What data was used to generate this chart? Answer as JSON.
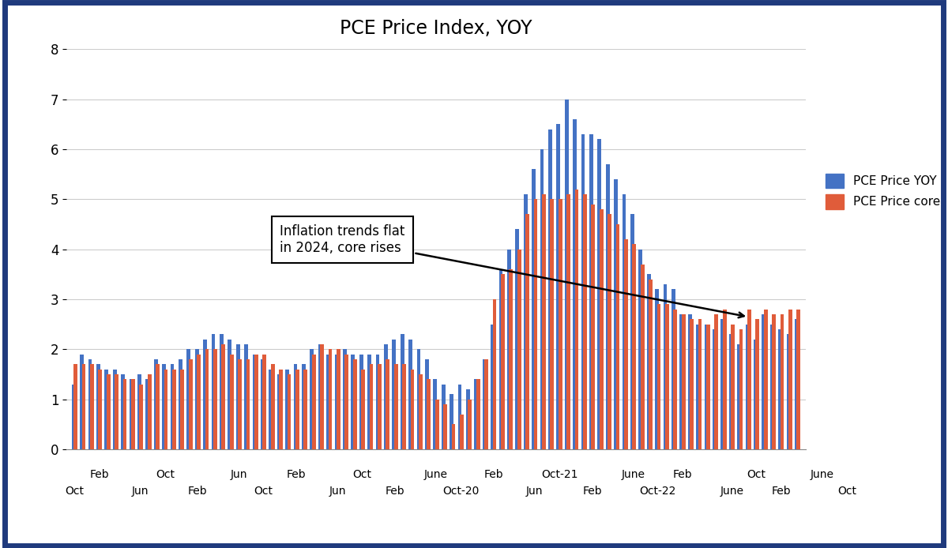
{
  "title": "PCE Price Index, YOY",
  "title_fontsize": 17,
  "bar_color_yoy": "#4472C4",
  "bar_color_core": "#E05C3A",
  "legend_yoy": "PCE Price YOY",
  "legend_core": "PCE Price core",
  "ylim": [
    0,
    8
  ],
  "yticks": [
    0,
    1,
    2,
    3,
    4,
    5,
    6,
    7,
    8
  ],
  "annotation_text": "Inflation trends flat\nin 2024, core rises",
  "background_color": "#FFFFFF",
  "border_color": "#1F3A7D",
  "pce_yoy": [
    1.3,
    1.9,
    1.8,
    1.7,
    1.6,
    1.6,
    1.5,
    1.4,
    1.5,
    1.4,
    1.8,
    1.7,
    1.7,
    1.8,
    2.0,
    2.0,
    2.2,
    2.3,
    2.3,
    2.2,
    2.1,
    2.1,
    1.9,
    1.8,
    1.6,
    1.5,
    1.6,
    1.7,
    1.7,
    2.0,
    2.1,
    1.9,
    1.9,
    2.0,
    1.9,
    1.9,
    1.9,
    1.9,
    2.1,
    2.2,
    2.3,
    2.2,
    2.0,
    1.8,
    1.4,
    1.3,
    1.1,
    1.3,
    1.2,
    1.4,
    1.8,
    2.5,
    3.6,
    4.0,
    4.4,
    5.1,
    5.6,
    6.0,
    6.4,
    6.5,
    7.0,
    6.6,
    6.3,
    6.3,
    6.2,
    5.7,
    5.4,
    5.1,
    4.7,
    4.0,
    3.5,
    3.2,
    3.3,
    3.2,
    2.7,
    2.7,
    2.5,
    2.5,
    2.4,
    2.6,
    2.3,
    2.1,
    2.5,
    2.2,
    2.7,
    2.5,
    2.4,
    2.3,
    2.6
  ],
  "pce_core": [
    1.7,
    1.7,
    1.7,
    1.6,
    1.5,
    1.5,
    1.4,
    1.4,
    1.3,
    1.5,
    1.7,
    1.6,
    1.6,
    1.6,
    1.8,
    1.9,
    2.0,
    2.0,
    2.1,
    1.9,
    1.8,
    1.8,
    1.9,
    1.9,
    1.7,
    1.6,
    1.5,
    1.6,
    1.6,
    1.9,
    2.1,
    2.0,
    2.0,
    1.9,
    1.8,
    1.6,
    1.7,
    1.7,
    1.8,
    1.7,
    1.7,
    1.6,
    1.5,
    1.4,
    1.0,
    0.9,
    0.5,
    0.7,
    1.0,
    1.4,
    1.8,
    3.0,
    3.5,
    3.6,
    4.0,
    4.7,
    5.0,
    5.1,
    5.0,
    5.0,
    5.1,
    5.2,
    5.1,
    4.9,
    4.8,
    4.7,
    4.5,
    4.2,
    4.1,
    3.7,
    3.4,
    2.9,
    2.9,
    2.8,
    2.7,
    2.6,
    2.6,
    2.5,
    2.7,
    2.8,
    2.5,
    2.4,
    2.8,
    2.6,
    2.8,
    2.7,
    2.7,
    2.8,
    2.8
  ],
  "xtick_labels_row1": [
    "Feb",
    "Oct",
    "Jun",
    "Feb",
    "Oct",
    "June",
    "Feb",
    "Oct-21",
    "June",
    "Feb",
    "Oct",
    "June"
  ],
  "xtick_labels_row2": [
    "Oct",
    "Jun",
    "Feb",
    "Oct",
    "Jun",
    "Feb",
    "Oct-20",
    "Jun",
    "Feb",
    "Oct-22",
    "June",
    "Feb",
    "Oct"
  ],
  "xtick_positions_row1": [
    3,
    11,
    20,
    27,
    35,
    44,
    51,
    59,
    68,
    74,
    83,
    91
  ],
  "xtick_positions_row2": [
    0,
    8,
    15,
    23,
    32,
    39,
    47,
    56,
    63,
    71,
    80,
    86,
    94
  ]
}
